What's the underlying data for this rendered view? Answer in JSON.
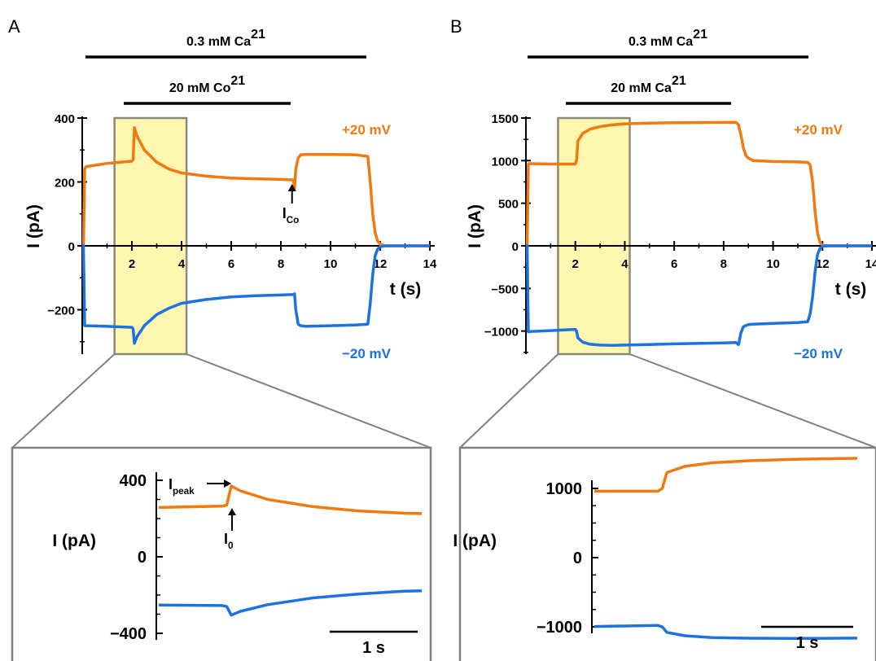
{
  "colors": {
    "orange": "#F07A10",
    "blue": "#1A73E0",
    "highlight": "#FFF6B0",
    "highlight_edge": "#8A8A7A",
    "zoom_box": "#808080"
  },
  "panels": [
    {
      "letter": "A",
      "bars": [
        {
          "label": "0.3 mM Ca",
          "sup": "2+",
          "t_start": 0,
          "t_end": 12
        },
        {
          "label": "20 mM Co",
          "sup": "2+",
          "t_start": 2,
          "t_end": 8.5
        }
      ],
      "highlight_t": [
        1.3,
        4.2
      ],
      "trace_labels": {
        "pos": "+20 mV",
        "neg": "−20 mV"
      },
      "time_axis_label": "t (s)",
      "current_axis_label": "I (pA)",
      "main_chart": {
        "type": "line",
        "xlim": [
          0,
          14
        ],
        "ylim": [
          -320,
          400
        ],
        "xticks": [
          2,
          4,
          6,
          8,
          10,
          12,
          14
        ],
        "yticks": [
          400,
          200,
          0,
          -200
        ],
        "ytick_labels": [
          "400",
          "200",
          "0",
          "−200"
        ],
        "series": [
          {
            "label": "+20 mV",
            "color": "orange",
            "x": [
              0,
              0.05,
              0.1,
              0.15,
              1.0,
              2.0,
              2.05,
              2.1,
              2.2,
              2.5,
              3.0,
              3.5,
              4.0,
              5.0,
              6.0,
              7.0,
              8.0,
              8.5,
              8.55,
              8.6,
              8.7,
              8.8,
              9.0,
              10.0,
              11.0,
              11.5,
              11.6,
              11.7,
              11.8,
              11.9,
              12.0,
              12.2,
              14.0
            ],
            "y": [
              0,
              0,
              240,
              248,
              258,
              265,
              270,
              370,
              345,
              300,
              262,
              240,
              228,
              218,
              212,
              210,
              208,
              206,
              180,
              240,
              275,
              285,
              286,
              286,
              285,
              280,
              200,
              100,
              40,
              15,
              5,
              0,
              0
            ]
          },
          {
            "label": "−20 mV",
            "color": "blue",
            "x": [
              0,
              0.05,
              0.1,
              0.15,
              1.0,
              2.0,
              2.05,
              2.1,
              2.2,
              2.5,
              3.0,
              3.5,
              4.0,
              5.0,
              6.0,
              7.0,
              8.0,
              8.5,
              8.55,
              8.6,
              8.7,
              8.8,
              9.0,
              10.0,
              11.0,
              11.5,
              11.6,
              11.7,
              11.8,
              11.9,
              12.0,
              12.2,
              14.0
            ],
            "y": [
              0,
              0,
              -250,
              -250,
              -252,
              -255,
              -260,
              -305,
              -285,
              -250,
              -215,
              -195,
              -180,
              -168,
              -160,
              -156,
              -154,
              -152,
              -150,
              -200,
              -245,
              -250,
              -252,
              -250,
              -248,
              -245,
              -180,
              -90,
              -30,
              -10,
              -3,
              0,
              0
            ]
          }
        ]
      },
      "zoom_chart": {
        "type": "line",
        "ylim": [
          -400,
          420
        ],
        "yticks": [
          400,
          0,
          -400
        ],
        "ytick_labels": [
          "400",
          "0",
          "−400"
        ],
        "scale_bar_label": "1 s",
        "annotations": {
          "i_peak": "I",
          "i_peak_sub": "peak",
          "i_0": "I",
          "i_0_sub": "0",
          "i_co": "I",
          "i_co_sub": "Co"
        },
        "series": [
          {
            "label": "+20 mV",
            "color": "orange",
            "x": [
              1.3,
              2.0,
              2.05,
              2.1,
              2.2,
              2.5,
              3.0,
              3.5,
              4.0,
              4.2
            ],
            "y": [
              258,
              265,
              270,
              370,
              345,
              300,
              262,
              240,
              228,
              226
            ]
          },
          {
            "label": "−20 mV",
            "color": "blue",
            "x": [
              1.3,
              2.0,
              2.05,
              2.1,
              2.2,
              2.5,
              3.0,
              3.5,
              4.0,
              4.2
            ],
            "y": [
              -252,
              -255,
              -260,
              -305,
              -285,
              -250,
              -215,
              -195,
              -180,
              -178
            ]
          }
        ]
      }
    },
    {
      "letter": "B",
      "bars": [
        {
          "label": "0.3 mM Ca",
          "sup": "2+",
          "t_start": 0,
          "t_end": 12
        },
        {
          "label": "20 mM Ca",
          "sup": "2+",
          "t_start": 2,
          "t_end": 8.5
        }
      ],
      "highlight_t": [
        1.3,
        4.2
      ],
      "trace_labels": {
        "pos": "+20 mV",
        "neg": "−20 mV"
      },
      "time_axis_label": "t (s)",
      "current_axis_label": "I (pA)",
      "main_chart": {
        "type": "line",
        "xlim": [
          0,
          14
        ],
        "ylim": [
          -1300,
          1600
        ],
        "xticks": [
          2,
          4,
          6,
          8,
          10,
          12,
          14
        ],
        "yticks": [
          1500,
          1000,
          500,
          0,
          -500,
          -1000
        ],
        "ytick_labels": [
          "1500",
          "1000",
          "500",
          "0",
          "−500",
          "−1000"
        ],
        "series": [
          {
            "label": "+20 mV",
            "color": "orange",
            "x": [
              0,
              0.05,
              0.1,
              0.15,
              1.0,
              2.0,
              2.05,
              2.1,
              2.3,
              2.6,
              3.0,
              3.5,
              4.0,
              5.0,
              6.0,
              8.0,
              8.5,
              8.6,
              8.7,
              8.8,
              8.9,
              9.0,
              9.2,
              10.0,
              11.0,
              11.4,
              11.5,
              11.6,
              11.7,
              11.8,
              11.9,
              12.0,
              12.2,
              14.0
            ],
            "y": [
              0,
              0,
              960,
              965,
              960,
              960,
              1000,
              1230,
              1320,
              1370,
              1400,
              1420,
              1432,
              1440,
              1445,
              1448,
              1450,
              1420,
              1300,
              1150,
              1060,
              1030,
              1000,
              990,
              985,
              980,
              950,
              750,
              400,
              150,
              40,
              5,
              0,
              0
            ]
          },
          {
            "label": "−20 mV",
            "color": "blue",
            "x": [
              0,
              0.05,
              0.1,
              0.15,
              1.0,
              2.0,
              2.05,
              2.1,
              2.3,
              2.6,
              3.0,
              3.5,
              4.0,
              5.0,
              6.0,
              8.0,
              8.5,
              8.6,
              8.7,
              8.8,
              8.9,
              9.0,
              9.2,
              10.0,
              11.0,
              11.4,
              11.5,
              11.6,
              11.7,
              11.8,
              11.9,
              12.0,
              12.2,
              14.0
            ],
            "y": [
              0,
              0,
              -1010,
              -1005,
              -995,
              -980,
              -1000,
              -1080,
              -1130,
              -1155,
              -1165,
              -1168,
              -1165,
              -1158,
              -1150,
              -1140,
              -1135,
              -1160,
              -1020,
              -950,
              -935,
              -925,
              -920,
              -910,
              -900,
              -890,
              -800,
              -600,
              -300,
              -100,
              -30,
              -5,
              0,
              0
            ]
          }
        ]
      },
      "zoom_chart": {
        "type": "line",
        "ylim": [
          -1600,
          1600
        ],
        "yticks": [
          1000,
          0,
          -1000
        ],
        "ytick_labels": [
          "1000",
          "0",
          "−1000"
        ],
        "scale_bar_label": "1 s",
        "series": [
          {
            "label": "+20 mV",
            "color": "orange",
            "x": [
              1.3,
              2.0,
              2.05,
              2.1,
              2.3,
              2.6,
              3.0,
              3.5,
              4.0,
              4.2
            ],
            "y": [
              960,
              960,
              1000,
              1230,
              1320,
              1370,
              1400,
              1420,
              1432,
              1435
            ]
          },
          {
            "label": "−20 mV",
            "color": "blue",
            "x": [
              1.3,
              2.0,
              2.05,
              2.1,
              2.3,
              2.6,
              3.0,
              3.5,
              4.0,
              4.2
            ],
            "y": [
              -995,
              -980,
              -1000,
              -1080,
              -1130,
              -1155,
              -1165,
              -1168,
              -1165,
              -1163
            ]
          }
        ]
      }
    }
  ]
}
